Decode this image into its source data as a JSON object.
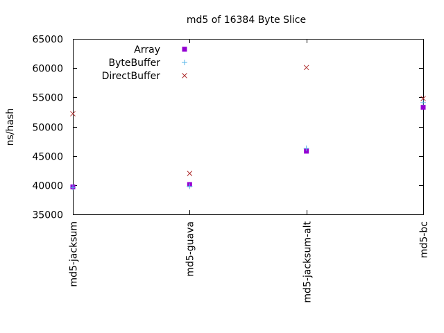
{
  "chart_data": {
    "type": "scatter",
    "title": "md5 of 16384 Byte Slice",
    "xlabel": "",
    "ylabel": "ns/hash",
    "categories": [
      "md5-jacksum",
      "md5-guava",
      "md5-jacksum-alt",
      "md5-bc"
    ],
    "ylim": [
      35000,
      65000
    ],
    "yticks": [
      "35000",
      "40000",
      "45000",
      "50000",
      "55000",
      "60000",
      "65000"
    ],
    "grid": false,
    "legend_position": "top-left",
    "series": [
      {
        "name": "Array",
        "marker": "filled-square",
        "color": "#9400d3",
        "values": [
          39700,
          40100,
          45800,
          53300
        ]
      },
      {
        "name": "ByteBuffer",
        "marker": "plus",
        "color": "#56b4e9",
        "values": [
          39600,
          39800,
          46300,
          54100
        ]
      },
      {
        "name": "DirectBuffer",
        "marker": "cross",
        "color": "#b03030",
        "values": [
          52200,
          42000,
          60100,
          54800
        ]
      }
    ]
  }
}
